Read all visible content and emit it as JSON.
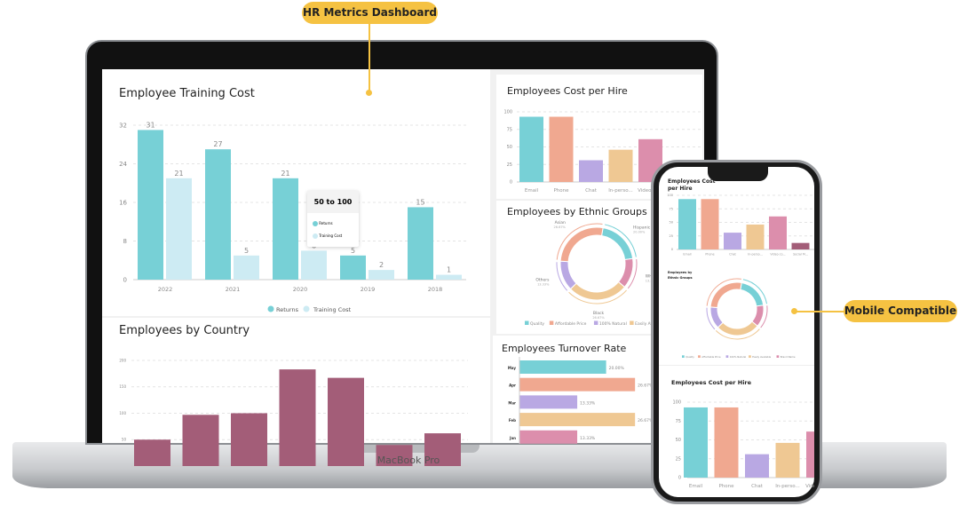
{
  "callouts": {
    "top": "HR  Metrics Dashboard",
    "right": "Mobile Compatible"
  },
  "device_label": "MacBook Pro",
  "colors": {
    "accent": "#f5c242",
    "teal": "#77d0d6",
    "light_teal": "#cdebf3",
    "salmon": "#f0a890",
    "purple": "#b9a8e3",
    "tan": "#efc893",
    "pink": "#dc8eac",
    "maroon": "#a35d78"
  },
  "training": {
    "title": "Employee Training Cost",
    "tooltip": {
      "title": "50 to 100",
      "items": [
        "Returns",
        "Training Cost"
      ]
    },
    "legend": [
      "Returns",
      "Training  Cost"
    ]
  },
  "country": {
    "title": "Employees by Country"
  },
  "cost_per_hire": {
    "title": "Employees Cost per Hire"
  },
  "ethnic": {
    "title": "Employees by Ethnic Groups",
    "legend": [
      "Quality",
      "Affordable Price",
      "100% Natural",
      "Easily Available",
      "Brand Name"
    ]
  },
  "turnover": {
    "title": "Employees Turnover Rate"
  },
  "phone": {
    "cost_title": "Employees Cost per Hire",
    "ethnic_title": "Employees by Ethnic Groups",
    "cost_title_2": "Employees Cost per Hire"
  },
  "chart_data": [
    {
      "type": "bar",
      "title": "Employee Training Cost",
      "categories": [
        "2022",
        "2021",
        "2020",
        "2019",
        "2018"
      ],
      "series": [
        {
          "name": "Returns",
          "values": [
            31,
            27,
            21,
            5,
            15
          ]
        },
        {
          "name": "Training  Cost",
          "values": [
            21,
            5,
            6,
            2,
            1
          ]
        }
      ],
      "ylim": [
        0,
        32
      ],
      "yticks": [
        0,
        8,
        16,
        24,
        32
      ],
      "grid": true,
      "legend": "bottom"
    },
    {
      "type": "bar",
      "title": "Employees by Country",
      "values": [
        50,
        97,
        100,
        183,
        167,
        40,
        62
      ],
      "ylim": [
        0,
        200
      ],
      "yticks": [
        50,
        100,
        150,
        200
      ],
      "grid": true
    },
    {
      "type": "bar",
      "title": "Employees Cost per Hire",
      "categories": [
        "Email",
        "Phone",
        "Chat",
        "In-perso...",
        "Video co...",
        "Social M..."
      ],
      "values": [
        93,
        93,
        31,
        46,
        61,
        12
      ],
      "ylim": [
        0,
        100
      ],
      "yticks": [
        0,
        25,
        50,
        75,
        100
      ],
      "grid": true
    },
    {
      "type": "pie",
      "title": "Employees by Ethnic Groups",
      "categories": [
        "Hispanic",
        "White",
        "Black",
        "Others",
        "Asian"
      ],
      "values": [
        20.0,
        13.33,
        26.67,
        13.33,
        26.67
      ],
      "labels": [
        "20.00%",
        "13.33%",
        "26.67%",
        "13.33%",
        "26.67%"
      ],
      "legend": "bottom"
    },
    {
      "type": "bar",
      "title": "Employees Turnover Rate",
      "orientation": "horizontal",
      "categories": [
        "May",
        "Apr",
        "Mar",
        "Feb",
        "Jan"
      ],
      "values": [
        20.0,
        26.67,
        13.33,
        26.67,
        13.33
      ],
      "labels": [
        "20.00%",
        "26.67%",
        "13.33%",
        "26.67%",
        "13.33%"
      ]
    }
  ]
}
